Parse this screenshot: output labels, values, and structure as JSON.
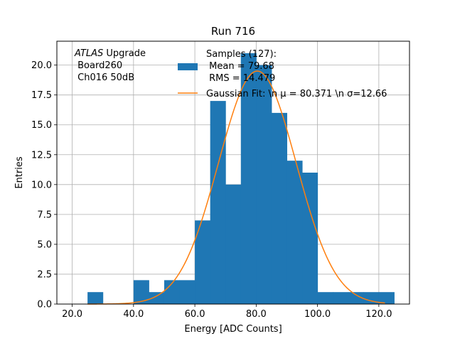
{
  "chart_data": {
    "type": "bar",
    "title": "Run 716",
    "xlabel": "Energy [ADC Counts]",
    "ylabel": "Entries",
    "xlim": [
      15,
      130
    ],
    "ylim": [
      0,
      22
    ],
    "x_ticks": [
      20,
      40,
      60,
      80,
      100,
      120
    ],
    "x_tick_labels": [
      "20.0",
      "40.0",
      "60.0",
      "80.0",
      "100.0",
      "120.0"
    ],
    "y_ticks": [
      0,
      2.5,
      5,
      7.5,
      10,
      12.5,
      15,
      17.5,
      20
    ],
    "y_tick_labels": [
      "0.0",
      "2.5",
      "5.0",
      "7.5",
      "10.0",
      "12.5",
      "15.0",
      "17.5",
      "20.0"
    ],
    "grid": true,
    "legend_position": "top-right",
    "annotation": {
      "line1_italic": "ATLAS",
      "line1_rest": " Upgrade",
      "line2": " Board260",
      "line3": " Ch016 50dB"
    },
    "histogram": {
      "name_lines": [
        "Samples (127):",
        " Mean = 79.68",
        " RMS = 14.479"
      ],
      "color": "#1f77b4",
      "bin_edges": [
        25,
        30,
        35,
        40,
        45,
        50,
        55,
        60,
        65,
        70,
        75,
        80,
        85,
        90,
        95,
        100,
        105,
        110,
        115,
        120,
        125
      ],
      "counts": [
        1,
        0,
        0,
        2,
        1,
        2,
        2,
        7,
        17,
        10,
        21,
        20,
        16,
        12,
        11,
        1,
        1,
        1,
        1,
        1
      ]
    },
    "fit": {
      "type": "gaussian",
      "name": "Gaussian Fit: \\n μ = 80.371 \\n σ=12.66",
      "mu": 80.371,
      "sigma": 12.66,
      "amplitude": 19.5,
      "x_range": [
        25,
        122
      ],
      "color": "#ff7f0e"
    }
  }
}
